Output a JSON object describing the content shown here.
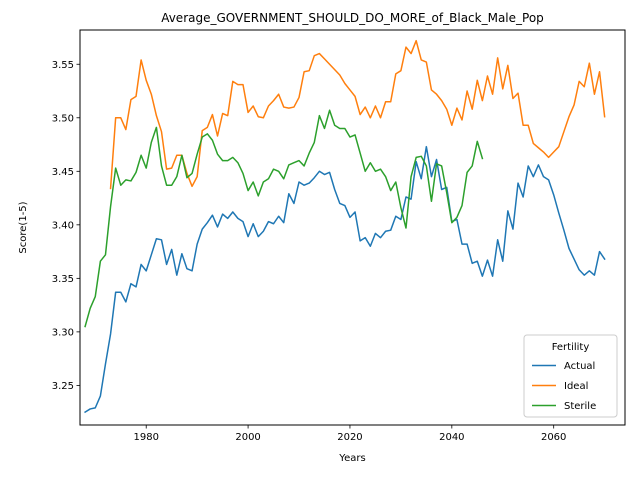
{
  "chart_data": {
    "type": "line",
    "title": "Average_GOVERNMENT_SHOULD_DO_MORE_of_Black_Male_Pop",
    "xlabel": "Years",
    "ylabel": "Score(1-5)",
    "xlim": [
      1967,
      2074
    ],
    "ylim": [
      3.213,
      3.582
    ],
    "xticks": [
      1980,
      2000,
      2020,
      2040,
      2060
    ],
    "yticks": [
      3.25,
      3.3,
      3.35,
      3.4,
      3.45,
      3.5,
      3.55
    ],
    "ytick_labels": [
      "3.25",
      "3.30",
      "3.35",
      "3.40",
      "3.45",
      "3.50",
      "3.55"
    ],
    "grid": false,
    "legend": {
      "title": "Fertility",
      "placement": "lower-right"
    },
    "series": [
      {
        "name": "Actual",
        "color": "#1f77b4",
        "x": [
          1968,
          1969,
          1970,
          1971,
          1972,
          1973,
          1974,
          1975,
          1976,
          1977,
          1978,
          1979,
          1980,
          1981,
          1982,
          1983,
          1984,
          1985,
          1986,
          1987,
          1988,
          1989,
          1990,
          1991,
          1992,
          1993,
          1994,
          1995,
          1996,
          1997,
          1998,
          1999,
          2000,
          2001,
          2002,
          2003,
          2004,
          2005,
          2006,
          2007,
          2008,
          2009,
          2010,
          2011,
          2012,
          2013,
          2014,
          2015,
          2016,
          2017,
          2018,
          2019,
          2020,
          2021,
          2022,
          2023,
          2024,
          2025,
          2026,
          2027,
          2028,
          2029,
          2030,
          2031,
          2032,
          2033,
          2034,
          2035,
          2036,
          2037,
          2038,
          2039,
          2040,
          2041,
          2042,
          2043,
          2044,
          2045,
          2046,
          2047,
          2048,
          2049,
          2050,
          2051,
          2052,
          2053,
          2054,
          2055,
          2056,
          2057,
          2058,
          2059,
          2060,
          2061,
          2062,
          2063,
          2064,
          2065,
          2066,
          2067,
          2068,
          2069,
          2070
        ],
        "values": [
          3.225,
          3.228,
          3.229,
          3.24,
          3.27,
          3.298,
          3.337,
          3.337,
          3.328,
          3.345,
          3.342,
          3.363,
          3.357,
          3.372,
          3.387,
          3.386,
          3.363,
          3.377,
          3.353,
          3.373,
          3.359,
          3.357,
          3.382,
          3.396,
          3.402,
          3.409,
          3.398,
          3.41,
          3.406,
          3.412,
          3.406,
          3.403,
          3.389,
          3.401,
          3.389,
          3.394,
          3.403,
          3.401,
          3.408,
          3.402,
          3.429,
          3.42,
          3.44,
          3.437,
          3.439,
          3.444,
          3.45,
          3.447,
          3.449,
          3.433,
          3.42,
          3.418,
          3.407,
          3.412,
          3.385,
          3.388,
          3.38,
          3.392,
          3.388,
          3.394,
          3.395,
          3.408,
          3.405,
          3.426,
          3.424,
          3.459,
          3.443,
          3.473,
          3.445,
          3.461,
          3.433,
          3.435,
          3.403,
          3.405,
          3.382,
          3.382,
          3.364,
          3.366,
          3.352,
          3.367,
          3.352,
          3.386,
          3.366,
          3.413,
          3.396,
          3.439,
          3.426,
          3.455,
          3.445,
          3.456,
          3.445,
          3.442,
          3.428,
          3.411,
          3.395,
          3.378,
          3.368,
          3.358,
          3.353,
          3.357,
          3.353,
          3.375,
          3.368
        ]
      },
      {
        "name": "Ideal",
        "color": "#ff7f0e",
        "x": [
          1973,
          1974,
          1975,
          1976,
          1977,
          1978,
          1979,
          1980,
          1981,
          1982,
          1983,
          1984,
          1985,
          1986,
          1987,
          1988,
          1989,
          1990,
          1991,
          1992,
          1993,
          1994,
          1995,
          1996,
          1997,
          1998,
          1999,
          2000,
          2001,
          2002,
          2003,
          2004,
          2005,
          2006,
          2007,
          2008,
          2009,
          2010,
          2011,
          2012,
          2013,
          2014,
          2015,
          2016,
          2017,
          2018,
          2019,
          2020,
          2021,
          2022,
          2023,
          2024,
          2025,
          2026,
          2027,
          2028,
          2029,
          2030,
          2031,
          2032,
          2033,
          2034,
          2035,
          2036,
          2037,
          2038,
          2039,
          2040,
          2041,
          2042,
          2043,
          2044,
          2045,
          2046,
          2047,
          2048,
          2049,
          2050,
          2051,
          2052,
          2053,
          2054,
          2055,
          2056,
          2057,
          2058,
          2059,
          2060,
          2061,
          2062,
          2063,
          2064,
          2065,
          2066,
          2067,
          2068,
          2069,
          2070
        ],
        "values": [
          3.434,
          3.5,
          3.5,
          3.489,
          3.517,
          3.52,
          3.554,
          3.535,
          3.522,
          3.502,
          3.487,
          3.452,
          3.453,
          3.465,
          3.465,
          3.448,
          3.436,
          3.445,
          3.488,
          3.491,
          3.503,
          3.483,
          3.504,
          3.502,
          3.534,
          3.531,
          3.531,
          3.505,
          3.511,
          3.501,
          3.5,
          3.511,
          3.516,
          3.522,
          3.51,
          3.509,
          3.51,
          3.519,
          3.543,
          3.544,
          3.558,
          3.56,
          3.555,
          3.55,
          3.545,
          3.54,
          3.532,
          3.526,
          3.52,
          3.503,
          3.51,
          3.5,
          3.511,
          3.5,
          3.515,
          3.515,
          3.541,
          3.544,
          3.566,
          3.56,
          3.572,
          3.554,
          3.552,
          3.526,
          3.522,
          3.516,
          3.508,
          3.493,
          3.509,
          3.498,
          3.525,
          3.508,
          3.535,
          3.516,
          3.539,
          3.522,
          3.556,
          3.527,
          3.549,
          3.518,
          3.523,
          3.493,
          3.493,
          3.476,
          3.472,
          3.468,
          3.463,
          3.468,
          3.473,
          3.487,
          3.501,
          3.512,
          3.534,
          3.529,
          3.551,
          3.522,
          3.543,
          3.501
        ]
      },
      {
        "name": "Sterile",
        "color": "#2ca02c",
        "x": [
          1968,
          1969,
          1970,
          1971,
          1972,
          1973,
          1974,
          1975,
          1976,
          1977,
          1978,
          1979,
          1980,
          1981,
          1982,
          1983,
          1984,
          1985,
          1986,
          1987,
          1988,
          1989,
          1990,
          1991,
          1992,
          1993,
          1994,
          1995,
          1996,
          1997,
          1998,
          1999,
          2000,
          2001,
          2002,
          2003,
          2004,
          2005,
          2006,
          2007,
          2008,
          2009,
          2010,
          2011,
          2012,
          2013,
          2014,
          2015,
          2016,
          2017,
          2018,
          2019,
          2020,
          2021,
          2022,
          2023,
          2024,
          2025,
          2026,
          2027,
          2028,
          2029,
          2030,
          2031,
          2032,
          2033,
          2034,
          2035,
          2036,
          2037,
          2038,
          2039,
          2040,
          2041,
          2042,
          2043,
          2044,
          2045,
          2046
        ],
        "values": [
          3.305,
          3.322,
          3.333,
          3.366,
          3.372,
          3.417,
          3.453,
          3.437,
          3.442,
          3.441,
          3.449,
          3.465,
          3.453,
          3.477,
          3.491,
          3.455,
          3.437,
          3.437,
          3.445,
          3.465,
          3.444,
          3.448,
          3.466,
          3.482,
          3.485,
          3.479,
          3.466,
          3.46,
          3.46,
          3.463,
          3.458,
          3.448,
          3.432,
          3.44,
          3.427,
          3.44,
          3.443,
          3.452,
          3.45,
          3.443,
          3.456,
          3.458,
          3.46,
          3.455,
          3.467,
          3.477,
          3.502,
          3.49,
          3.507,
          3.493,
          3.49,
          3.49,
          3.482,
          3.484,
          3.467,
          3.45,
          3.458,
          3.45,
          3.452,
          3.445,
          3.432,
          3.44,
          3.416,
          3.397,
          3.445,
          3.463,
          3.464,
          3.455,
          3.422,
          3.457,
          3.455,
          3.43,
          3.402,
          3.407,
          3.418,
          3.449,
          3.455,
          3.478,
          3.462
        ]
      }
    ]
  }
}
